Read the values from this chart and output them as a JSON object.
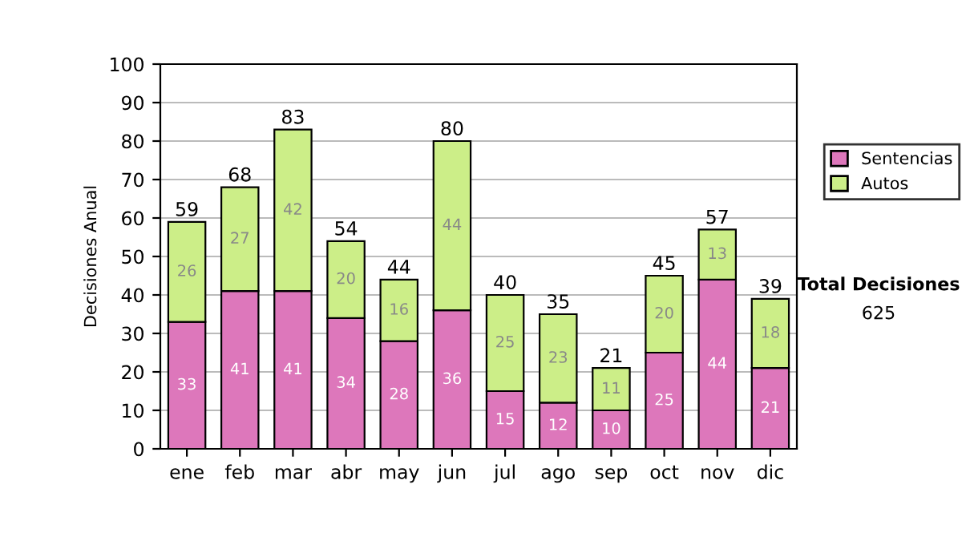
{
  "chart_data": {
    "type": "bar",
    "stacked": true,
    "ylabel": "Decisiones Anual",
    "categories": [
      "ene",
      "feb",
      "mar",
      "abr",
      "may",
      "jun",
      "jul",
      "ago",
      "sep",
      "oct",
      "nov",
      "dic"
    ],
    "series": [
      {
        "name": "Sentencias",
        "color": "#dd77bb",
        "values": [
          33,
          41,
          41,
          34,
          28,
          36,
          15,
          12,
          10,
          25,
          44,
          21
        ]
      },
      {
        "name": "Autos",
        "color": "#ccee88",
        "values": [
          26,
          27,
          42,
          20,
          16,
          44,
          25,
          23,
          11,
          20,
          13,
          18
        ]
      }
    ],
    "totals": [
      "59",
      "68",
      "83",
      "54",
      "44",
      "80",
      "40",
      "35",
      "21",
      "45",
      "57",
      "39"
    ],
    "data_labels": true,
    "ylim": [
      0,
      100
    ],
    "yticks": [
      0,
      10,
      20,
      30,
      40,
      50,
      60,
      70,
      80,
      90,
      100
    ],
    "grid": "y",
    "legend": "right",
    "annotations": [
      "Total Decisiones",
      "625"
    ]
  }
}
